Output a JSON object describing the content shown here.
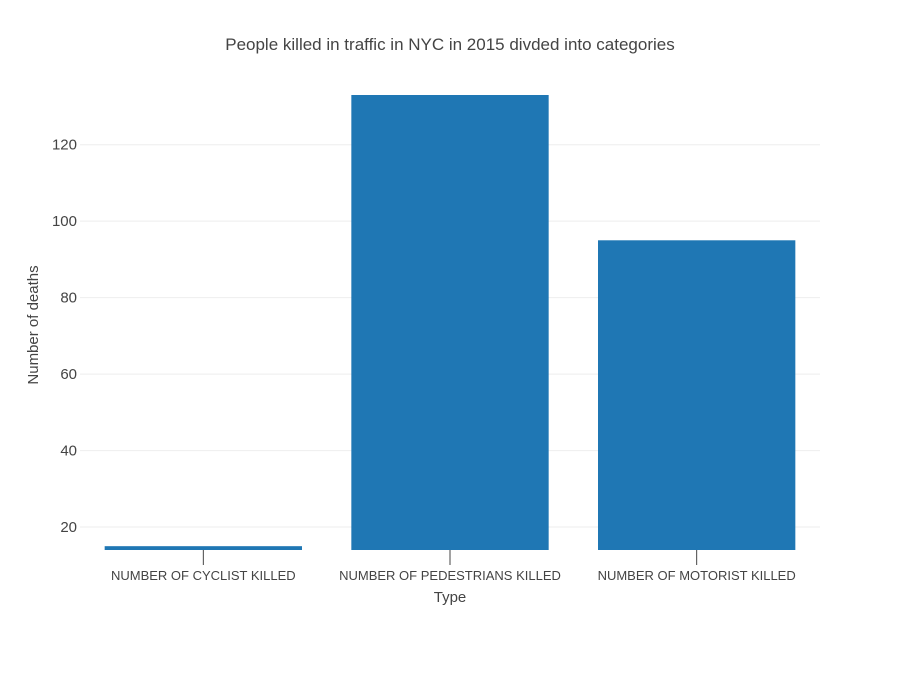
{
  "chart_data": {
    "type": "bar",
    "title": "People killed in traffic in NYC in 2015 divded into categories",
    "xlabel": "Type",
    "ylabel": "Number of deaths",
    "categories": [
      "NUMBER OF CYCLIST KILLED",
      "NUMBER OF PEDESTRIANS KILLED",
      "NUMBER OF MOTORIST KILLED"
    ],
    "values": [
      15,
      133,
      95
    ],
    "ylim": [
      14,
      133
    ],
    "yticks": [
      20,
      40,
      60,
      80,
      100,
      120
    ],
    "grid": true,
    "bar_color": "#1f77b4"
  }
}
